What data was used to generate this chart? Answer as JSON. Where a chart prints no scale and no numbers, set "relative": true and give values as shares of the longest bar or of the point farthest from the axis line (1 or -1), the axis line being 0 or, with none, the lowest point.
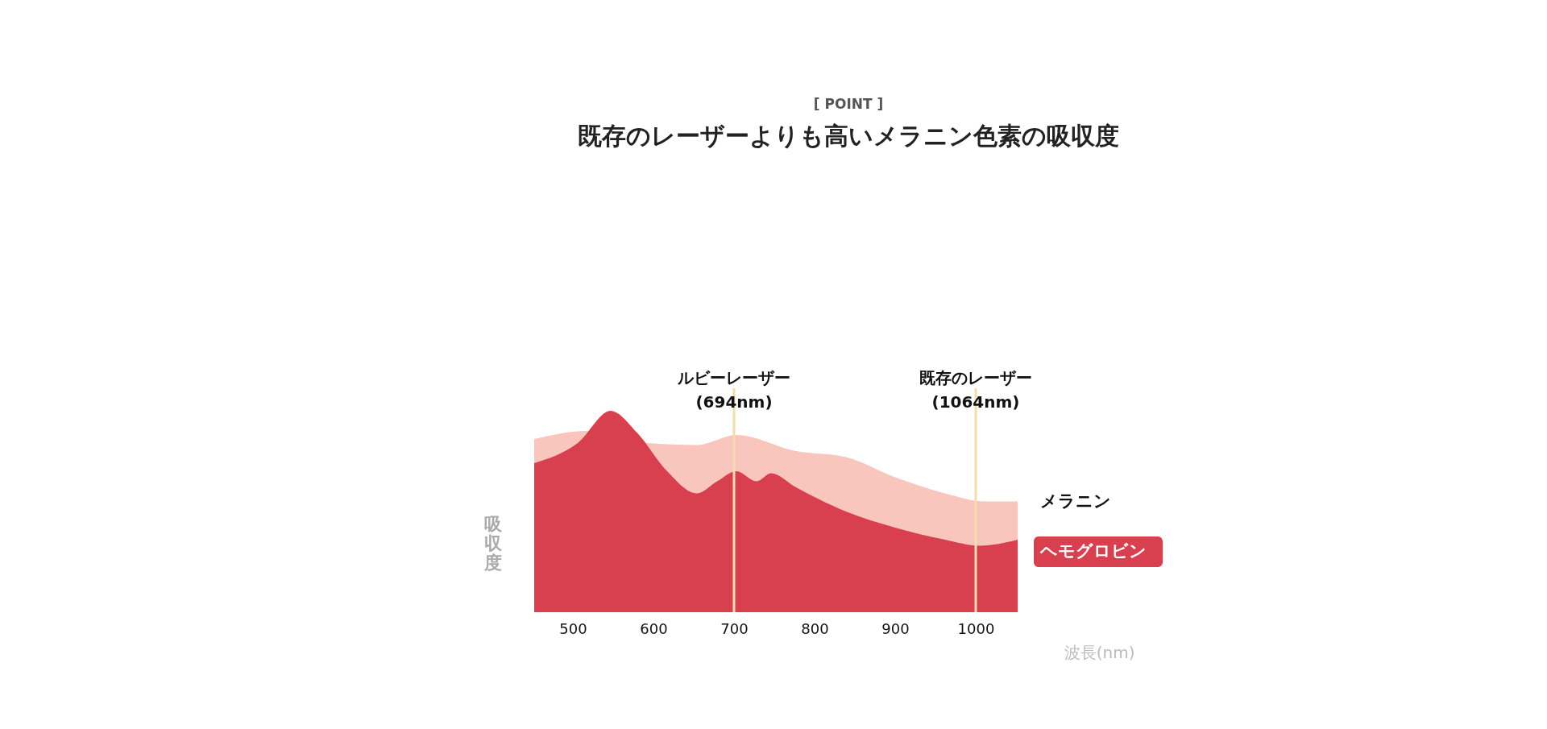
{
  "chart_data": {
    "type": "area",
    "title": "既存のレーザーよりも高いメラニン色素の吸収度",
    "annotations": [
      "[ POINT ]"
    ],
    "xlabel": "波長(nm)",
    "ylabel": "吸収度",
    "relative": true,
    "xlim": [
      452,
      1052
    ],
    "xticks": [
      500,
      600,
      700,
      800,
      900,
      1000
    ],
    "grid": false,
    "series": [
      {
        "name": "メラニン",
        "color": "#f8c6bd",
        "x": [
          452,
          518,
          592,
          654,
          703,
          777,
          839,
          900,
          962,
          1011,
          1052
        ],
        "values": [
          0.86,
          0.9,
          0.84,
          0.83,
          0.88,
          0.8,
          0.77,
          0.67,
          0.59,
          0.55,
          0.55
        ]
      },
      {
        "name": "ヘモグロビン",
        "color": "#d8404f",
        "x": [
          452,
          506,
          547,
          580,
          617,
          654,
          679,
          703,
          728,
          746,
          777,
          839,
          900,
          962,
          1005,
          1052
        ],
        "values": [
          0.74,
          0.84,
          1.0,
          0.89,
          0.7,
          0.59,
          0.65,
          0.7,
          0.65,
          0.69,
          0.62,
          0.5,
          0.42,
          0.36,
          0.33,
          0.36
        ]
      }
    ],
    "ref_lines": [
      {
        "axis": "x",
        "value": 700,
        "label": "ルビーレーザー\n(694nm)",
        "color": "#f3dcae"
      },
      {
        "axis": "x",
        "value": 1000,
        "label": "既存のレーザー\n(1064nm)",
        "color": "#f3dcae"
      }
    ]
  }
}
